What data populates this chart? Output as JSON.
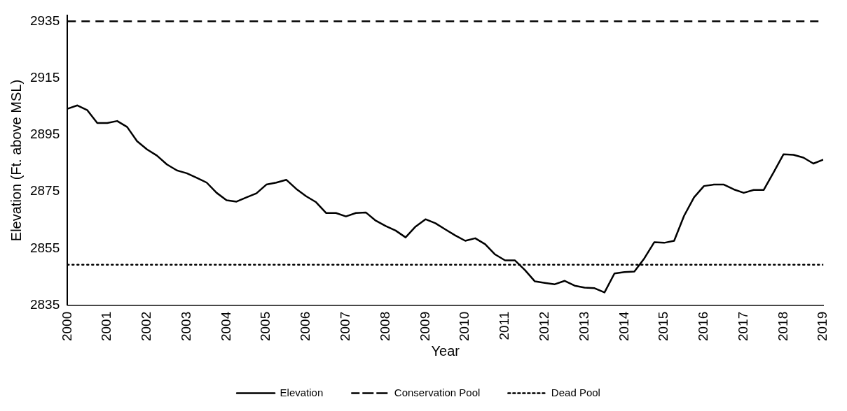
{
  "chart_data": {
    "type": "line",
    "xlabel": "Year",
    "ylabel": "Elevation (Ft. above MSL)",
    "xlim": [
      2000,
      2019
    ],
    "xticks": [
      2000,
      2001,
      2002,
      2003,
      2004,
      2005,
      2006,
      2007,
      2008,
      2009,
      2010,
      2011,
      2012,
      2013,
      2014,
      2015,
      2016,
      2017,
      2018,
      2019
    ],
    "ylim": [
      2835,
      2937
    ],
    "yticks": [
      2835,
      2855,
      2875,
      2895,
      2915,
      2935
    ],
    "grid": false,
    "legend": "bottom",
    "marker": "none",
    "x": [
      2000,
      2000.25,
      2000.5,
      2000.75,
      2001,
      2001.25,
      2001.5,
      2001.75,
      2002,
      2002.25,
      2002.5,
      2002.75,
      2003,
      2003.25,
      2003.5,
      2003.75,
      2004,
      2004.25,
      2004.5,
      2004.75,
      2005,
      2005.25,
      2005.5,
      2005.75,
      2006,
      2006.25,
      2006.5,
      2006.75,
      2007,
      2007.25,
      2007.5,
      2007.75,
      2008,
      2008.25,
      2008.5,
      2008.75,
      2009,
      2009.25,
      2009.5,
      2009.75,
      2010,
      2010.25,
      2010.5,
      2010.75,
      2011,
      2011.25,
      2011.5,
      2011.75,
      2012,
      2012.25,
      2012.5,
      2012.75,
      2013,
      2013.25,
      2013.5,
      2013.75,
      2014,
      2014.25,
      2014.5,
      2014.75,
      2015,
      2015.25,
      2015.5,
      2015.75,
      2016,
      2016.25,
      2016.5,
      2016.75,
      2017,
      2017.25,
      2017.5,
      2017.75,
      2018,
      2018.25,
      2018.5,
      2018.75,
      2019
    ],
    "series": [
      {
        "name": "Elevation",
        "color": "#000000",
        "values": [
          2904.2,
          2905.4,
          2903.7,
          2899.2,
          2899.2,
          2899.9,
          2897.8,
          2892.8,
          2889.9,
          2887.7,
          2884.6,
          2882.5,
          2881.5,
          2879.9,
          2878.2,
          2874.6,
          2872.0,
          2871.5,
          2873.0,
          2874.4,
          2877.5,
          2878.2,
          2879.2,
          2876.0,
          2873.4,
          2871.3,
          2867.5,
          2867.5,
          2866.3,
          2867.5,
          2867.7,
          2864.8,
          2862.9,
          2861.3,
          2858.9,
          2862.7,
          2865.3,
          2863.9,
          2861.7,
          2859.6,
          2857.7,
          2858.6,
          2856.5,
          2852.9,
          2850.8,
          2850.8,
          2847.4,
          2843.4,
          2842.9,
          2842.4,
          2843.6,
          2841.9,
          2841.2,
          2841.0,
          2839.5,
          2846.2,
          2846.7,
          2846.9,
          2851.5,
          2857.2,
          2857.0,
          2857.7,
          2866.5,
          2873.0,
          2877.0,
          2877.5,
          2877.5,
          2875.8,
          2874.6,
          2875.6,
          2875.6,
          2881.8,
          2888.2,
          2888.0,
          2887.0,
          2884.9,
          2886.3
        ]
      }
    ],
    "ref_lines": [
      {
        "axis": "y",
        "value": 2935,
        "label": "Conservation Pool",
        "color": "#000000",
        "line_style": "dashed"
      },
      {
        "axis": "y",
        "value": 2849.3,
        "label": "Dead Pool",
        "color": "#000000",
        "line_style": "dotted"
      }
    ]
  }
}
